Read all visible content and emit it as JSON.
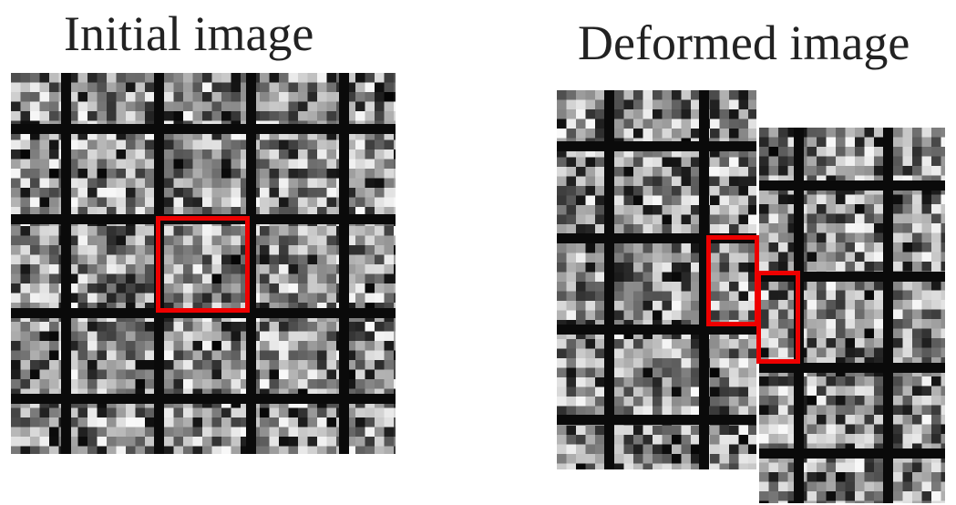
{
  "figure": {
    "initial_title": "Initial image",
    "deformed_title": "Deformed image"
  },
  "colors": {
    "highlight": "#ee0000",
    "grid_line": "#0a0a0a",
    "background": "#ffffff",
    "title_text": "#222222"
  },
  "panels": [
    {
      "name": "initial-image",
      "seed": 11
    },
    {
      "name": "deformed-image-left-half",
      "seed": 23
    },
    {
      "name": "deformed-image-right-half",
      "seed": 37
    }
  ]
}
